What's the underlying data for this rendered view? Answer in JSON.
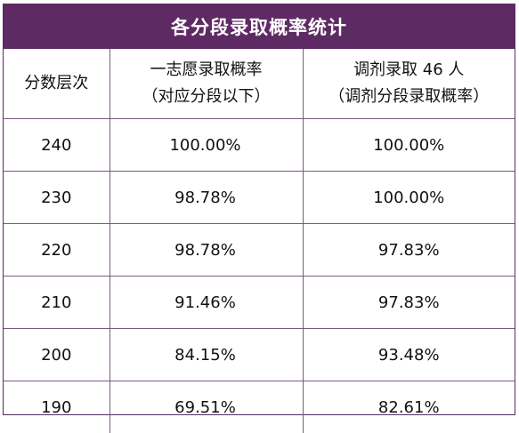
{
  "title": "各分段录取概率统计",
  "headers": {
    "col1": "分数层次",
    "col2_line1": "一志愿录取概率",
    "col2_line2": "（对应分段以下）",
    "col3_line1": "调剂录取 46 人",
    "col3_line2": "（调剂分段录取概率）"
  },
  "rows": [
    {
      "score": "240",
      "first_choice": "100.00%",
      "adjust": "100.00%"
    },
    {
      "score": "230",
      "first_choice": "98.78%",
      "adjust": "100.00%"
    },
    {
      "score": "220",
      "first_choice": "98.78%",
      "adjust": "97.83%"
    },
    {
      "score": "210",
      "first_choice": "91.46%",
      "adjust": "97.83%"
    },
    {
      "score": "200",
      "first_choice": "84.15%",
      "adjust": "93.48%"
    },
    {
      "score": "190",
      "first_choice": "69.51%",
      "adjust": "82.61%"
    }
  ],
  "colors": {
    "header_bg": "#5e2a64",
    "border": "#7a5a80"
  }
}
